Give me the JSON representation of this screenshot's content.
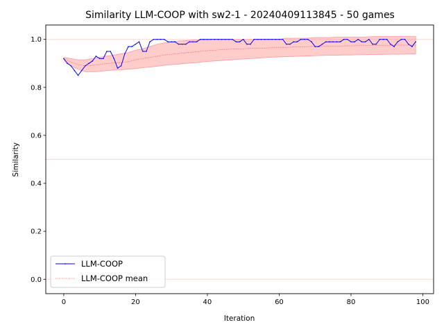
{
  "chart_data": {
    "type": "line",
    "title": "Similarity LLM-COOP with sw2-1 - 20240409113845 - 50 games",
    "xlabel": "Iteration",
    "ylabel": "Similarity",
    "xlim": [
      -5,
      103
    ],
    "ylim": [
      -0.06,
      1.06
    ],
    "xticks": [
      "0",
      "20",
      "40",
      "60",
      "80",
      "100"
    ],
    "yticks": [
      "0.0",
      "0.2",
      "0.4",
      "0.6",
      "0.8",
      "1.0"
    ],
    "grid": false,
    "legend_position": "lower-left",
    "reference_lines": [
      1.0,
      0.5,
      0.0
    ],
    "colors": {
      "series": "#0000ff",
      "mean": "#ff0000",
      "band": "#ff9999",
      "reference": "#ffd6d6"
    },
    "series": [
      {
        "name": "LLM-COOP",
        "x": [
          0,
          1,
          2,
          3,
          4,
          5,
          6,
          7,
          8,
          9,
          10,
          11,
          12,
          13,
          14,
          15,
          16,
          17,
          18,
          19,
          20,
          21,
          22,
          23,
          24,
          25,
          26,
          27,
          28,
          29,
          30,
          31,
          32,
          33,
          34,
          35,
          36,
          37,
          38,
          39,
          40,
          41,
          42,
          43,
          44,
          45,
          46,
          47,
          48,
          49,
          50,
          51,
          52,
          53,
          54,
          55,
          56,
          57,
          58,
          59,
          60,
          61,
          62,
          63,
          64,
          65,
          66,
          67,
          68,
          69,
          70,
          71,
          72,
          73,
          74,
          75,
          76,
          77,
          78,
          79,
          80,
          81,
          82,
          83,
          84,
          85,
          86,
          87,
          88,
          89,
          90,
          91,
          92,
          93,
          94,
          95,
          96,
          97,
          98
        ],
        "values": [
          0.92,
          0.9,
          0.89,
          0.87,
          0.85,
          0.87,
          0.89,
          0.9,
          0.91,
          0.93,
          0.92,
          0.92,
          0.95,
          0.95,
          0.92,
          0.88,
          0.89,
          0.94,
          0.97,
          0.97,
          0.98,
          0.99,
          0.95,
          0.95,
          0.99,
          1.0,
          1.0,
          1.0,
          1.0,
          0.99,
          0.99,
          0.99,
          0.98,
          0.98,
          0.98,
          0.99,
          0.99,
          0.99,
          1.0,
          1.0,
          1.0,
          1.0,
          1.0,
          1.0,
          1.0,
          1.0,
          1.0,
          1.0,
          0.99,
          0.99,
          1.0,
          0.98,
          0.98,
          1.0,
          1.0,
          1.0,
          1.0,
          1.0,
          1.0,
          1.0,
          1.0,
          1.0,
          0.98,
          0.98,
          0.99,
          0.99,
          1.0,
          1.0,
          1.0,
          0.99,
          0.97,
          0.97,
          0.98,
          0.99,
          0.99,
          0.99,
          0.99,
          0.99,
          1.0,
          1.0,
          0.99,
          0.99,
          1.0,
          0.99,
          0.99,
          1.0,
          0.98,
          0.98,
          1.0,
          1.0,
          1.0,
          0.98,
          0.97,
          0.99,
          1.0,
          1.0,
          0.98,
          0.97,
          0.99
        ]
      },
      {
        "name": "LLM-COOP mean",
        "x": [
          0,
          2,
          4,
          6,
          8,
          10,
          12,
          14,
          16,
          18,
          20,
          22,
          24,
          26,
          28,
          30,
          32,
          34,
          36,
          38,
          40,
          42,
          44,
          46,
          48,
          50,
          52,
          54,
          56,
          58,
          60,
          62,
          64,
          66,
          68,
          70,
          72,
          74,
          76,
          78,
          80,
          82,
          84,
          86,
          88,
          90,
          92,
          94,
          96,
          98
        ],
        "values": [
          0.92,
          0.905,
          0.895,
          0.89,
          0.892,
          0.895,
          0.9,
          0.902,
          0.903,
          0.907,
          0.915,
          0.92,
          0.925,
          0.93,
          0.935,
          0.938,
          0.941,
          0.944,
          0.947,
          0.95,
          0.953,
          0.955,
          0.957,
          0.959,
          0.96,
          0.961,
          0.962,
          0.963,
          0.964,
          0.965,
          0.966,
          0.967,
          0.968,
          0.969,
          0.97,
          0.971,
          0.971,
          0.972,
          0.972,
          0.973,
          0.973,
          0.974,
          0.974,
          0.975,
          0.975,
          0.975,
          0.976,
          0.976,
          0.976,
          0.976
        ],
        "band_upper": [
          0.925,
          0.92,
          0.915,
          0.915,
          0.92,
          0.925,
          0.93,
          0.935,
          0.94,
          0.945,
          0.955,
          0.96,
          0.97,
          0.98,
          0.985,
          0.99,
          0.993,
          0.995,
          0.997,
          0.998,
          0.999,
          1.0,
          1.0,
          1.0,
          1.0,
          1.0,
          1.0,
          1.0,
          1.0,
          1.0,
          1.0,
          1.005,
          1.005,
          1.005,
          1.005,
          1.008,
          1.008,
          1.008,
          1.01,
          1.01,
          1.01,
          1.01,
          1.01,
          1.012,
          1.012,
          1.012,
          1.012,
          1.012,
          1.012,
          1.012
        ],
        "band_lower": [
          0.915,
          0.89,
          0.875,
          0.865,
          0.865,
          0.866,
          0.87,
          0.872,
          0.873,
          0.876,
          0.878,
          0.882,
          0.885,
          0.888,
          0.892,
          0.895,
          0.897,
          0.9,
          0.902,
          0.905,
          0.908,
          0.91,
          0.912,
          0.914,
          0.916,
          0.918,
          0.92,
          0.922,
          0.924,
          0.926,
          0.927,
          0.928,
          0.929,
          0.93,
          0.931,
          0.932,
          0.933,
          0.934,
          0.934,
          0.935,
          0.935,
          0.936,
          0.936,
          0.937,
          0.937,
          0.938,
          0.938,
          0.938,
          0.939,
          0.939
        ]
      }
    ]
  }
}
